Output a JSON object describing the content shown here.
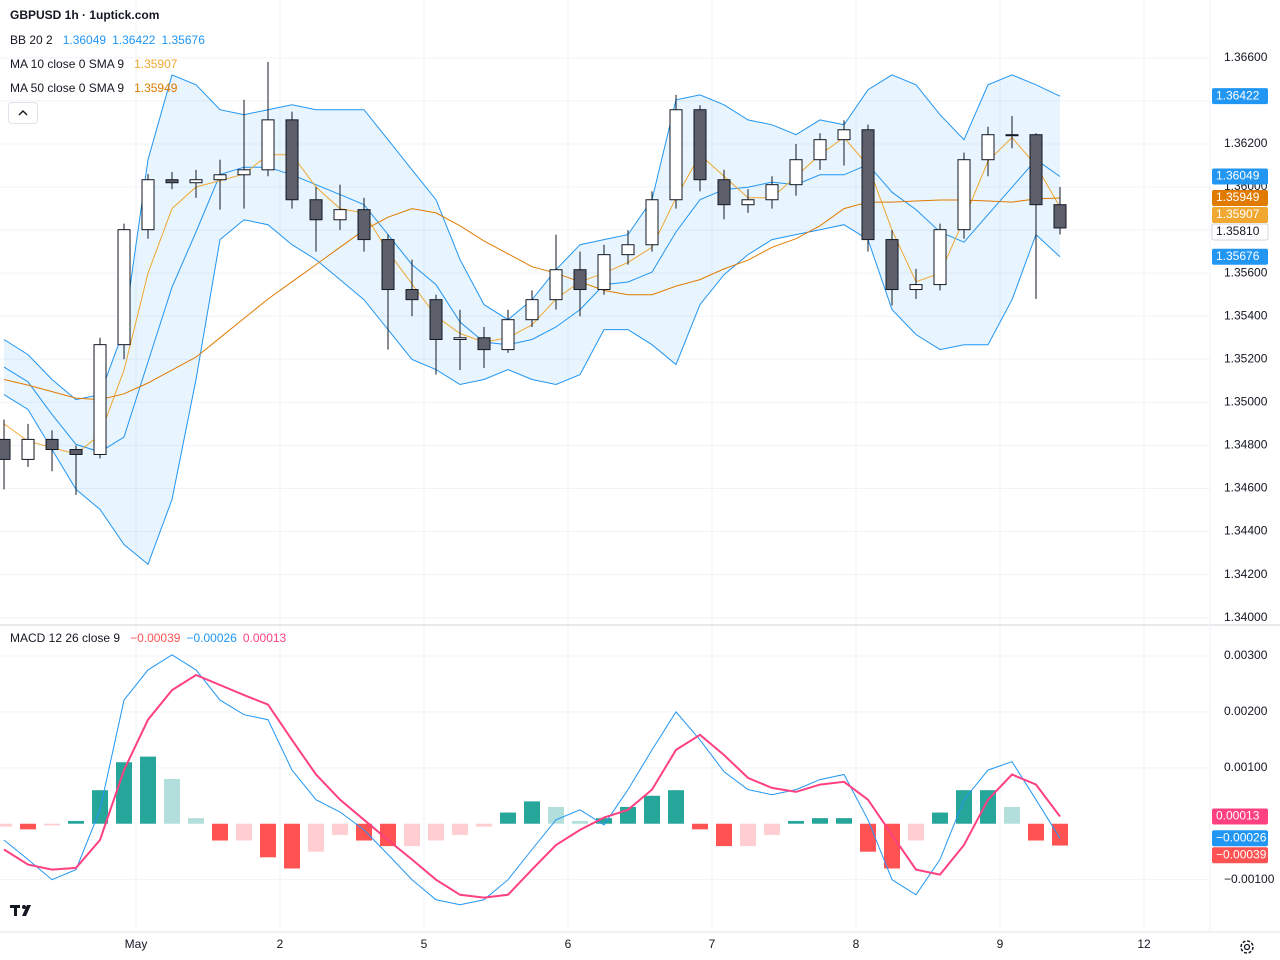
{
  "header": {
    "title": "GBPUSD 1h · 1uptick.com"
  },
  "chart_data": [
    {
      "type": "candlestick",
      "x": [
        -22,
        -18,
        -14,
        -10,
        -6,
        -2,
        2,
        6,
        10,
        14,
        18,
        22,
        26,
        30,
        34,
        38,
        42,
        46,
        50,
        54,
        58,
        62,
        66,
        70,
        74,
        78,
        82,
        86,
        90,
        94,
        98,
        102,
        106,
        110,
        114,
        118,
        122,
        126,
        130,
        134,
        138,
        142,
        146,
        150,
        154
      ],
      "xlim": [
        -22.67,
        179
      ],
      "xticks": [
        {
          "value": 0,
          "label": "May"
        },
        {
          "value": 24,
          "label": "2"
        },
        {
          "value": 48,
          "label": "5"
        },
        {
          "value": 72,
          "label": "6"
        },
        {
          "value": 96,
          "label": "7"
        },
        {
          "value": 120,
          "label": "8"
        },
        {
          "value": 144,
          "label": "9"
        },
        {
          "value": 168,
          "label": "12"
        }
      ],
      "open": [
        1.34828,
        1.34735,
        1.34828,
        1.34781,
        1.34758,
        1.35268,
        1.35802,
        1.36034,
        1.3602,
        1.36034,
        1.36057,
        1.3608,
        1.36312,
        1.35941,
        1.35848,
        1.35895,
        1.35756,
        1.35524,
        1.35477,
        1.35292,
        1.353,
        1.35245,
        1.35384,
        1.35477,
        1.35616,
        1.35524,
        1.35686,
        1.35732,
        1.35941,
        1.36359,
        1.36034,
        1.35918,
        1.35941,
        1.36011,
        1.36127,
        1.3622,
        1.36266,
        1.35756,
        1.35524,
        1.35547,
        1.35802,
        1.36127,
        1.36243,
        1.36243,
        1.35918
      ],
      "high": [
        1.3492,
        1.349,
        1.3487,
        1.348,
        1.353,
        1.3583,
        1.3606,
        1.3607,
        1.3608,
        1.36127,
        1.36405,
        1.36581,
        1.3635,
        1.36,
        1.36011,
        1.3595,
        1.3578,
        1.35663,
        1.355,
        1.3543,
        1.3535,
        1.3543,
        1.3552,
        1.35779,
        1.357,
        1.35732,
        1.358,
        1.3598,
        1.36428,
        1.3638,
        1.3608,
        1.3599,
        1.3605,
        1.362,
        1.3625,
        1.3631,
        1.3629,
        1.358,
        1.3562,
        1.3583,
        1.3616,
        1.3628,
        1.3633,
        1.3625,
        1.36
      ],
      "low": [
        1.34596,
        1.347,
        1.3468,
        1.3457,
        1.3474,
        1.352,
        1.3576,
        1.3599,
        1.3595,
        1.35895,
        1.359,
        1.3605,
        1.359,
        1.357,
        1.358,
        1.357,
        1.35245,
        1.354,
        1.35129,
        1.3515,
        1.3516,
        1.3523,
        1.3535,
        1.35431,
        1.354,
        1.355,
        1.3564,
        1.357,
        1.359,
        1.3598,
        1.3585,
        1.3588,
        1.359,
        1.3596,
        1.3608,
        1.361,
        1.357,
        1.3545,
        1.3548,
        1.3552,
        1.3576,
        1.3605,
        1.3618,
        1.3548,
        1.3578
      ],
      "close": [
        1.34735,
        1.34828,
        1.34781,
        1.34758,
        1.35268,
        1.35802,
        1.36034,
        1.3602,
        1.36034,
        1.36057,
        1.3608,
        1.36312,
        1.35941,
        1.35848,
        1.35895,
        1.35756,
        1.35524,
        1.35477,
        1.35292,
        1.353,
        1.35245,
        1.35384,
        1.35477,
        1.35616,
        1.35524,
        1.35686,
        1.35732,
        1.35941,
        1.36359,
        1.36034,
        1.35918,
        1.35941,
        1.36011,
        1.36127,
        1.3622,
        1.36266,
        1.35756,
        1.35524,
        1.35547,
        1.35802,
        1.36127,
        1.36243,
        1.36243,
        1.35918,
        1.3581
      ],
      "candle_colors": {
        "up": "#ffffff",
        "down": "#5d606b",
        "border": "#131722"
      },
      "last_price": {
        "value": 1.3581,
        "label": "1.35810"
      },
      "ylim": [
        1.3398,
        1.3672
      ],
      "yticks": [
        {
          "value": 1.34,
          "label": "1.34000"
        },
        {
          "value": 1.342,
          "label": "1.34200"
        },
        {
          "value": 1.344,
          "label": "1.34400"
        },
        {
          "value": 1.346,
          "label": "1.34600"
        },
        {
          "value": 1.348,
          "label": "1.34800"
        },
        {
          "value": 1.35,
          "label": "1.35000"
        },
        {
          "value": 1.352,
          "label": "1.35200"
        },
        {
          "value": 1.354,
          "label": "1.35400"
        },
        {
          "value": 1.356,
          "label": "1.35600"
        },
        {
          "value": 1.358,
          "label": "1.35800"
        },
        {
          "value": 1.36,
          "label": "1.36000"
        },
        {
          "value": 1.362,
          "label": "1.36200"
        },
        {
          "value": 1.364,
          "label": "1.36400"
        },
        {
          "value": 1.366,
          "label": "1.36600"
        }
      ],
      "grid": true,
      "indicators": [
        {
          "name": "BB 20 2",
          "color": "#2196f3",
          "fill": "rgba(33,150,243,0.10)",
          "series": [
            {
              "values": [
                1.35164,
                1.35095,
                1.34944,
                1.34805,
                1.3477,
                1.34839,
                1.35188,
                1.35535,
                1.35791,
                1.36058,
                1.36092,
                1.36092,
                1.36057,
                1.36011,
                1.35965,
                1.35918,
                1.35779,
                1.3564,
                1.35547,
                1.35373,
                1.3528,
                1.35268,
                1.35292,
                1.3535,
                1.35431,
                1.35547,
                1.35559,
                1.35605,
                1.35791,
                1.35941,
                1.35988,
                1.35999,
                1.36023,
                1.36011,
                1.36057,
                1.36057,
                1.36104,
                1.35976,
                1.35895,
                1.35791,
                1.35744,
                1.35872,
                1.35999,
                1.36127,
                1.36049
              ],
              "last": 1.36049
            },
            {
              "values": [
                1.35292,
                1.35222,
                1.35106,
                1.35013,
                1.35036,
                1.35338,
                1.36127,
                1.36521,
                1.36475,
                1.36359,
                1.36336,
                1.36359,
                1.36382,
                1.36359,
                1.36359,
                1.36359,
                1.3622,
                1.3608,
                1.35941,
                1.35663,
                1.35454,
                1.35384,
                1.35477,
                1.35616,
                1.35732,
                1.35756,
                1.35779,
                1.35941,
                1.36405,
                1.36428,
                1.36382,
                1.36312,
                1.36289,
                1.36243,
                1.36312,
                1.36289,
                1.36452,
                1.36521,
                1.36475,
                1.36336,
                1.3622,
                1.36475,
                1.36521,
                1.36475,
                1.36422
              ],
              "last": 1.36422
            },
            {
              "values": [
                1.35036,
                1.34967,
                1.34781,
                1.34596,
                1.34503,
                1.3434,
                1.34248,
                1.34549,
                1.35106,
                1.35756,
                1.35848,
                1.35825,
                1.35732,
                1.35663,
                1.3557,
                1.35477,
                1.35338,
                1.35199,
                1.35152,
                1.35083,
                1.35106,
                1.35152,
                1.35106,
                1.35083,
                1.35129,
                1.35338,
                1.35338,
                1.35268,
                1.35176,
                1.35454,
                1.35593,
                1.35686,
                1.35756,
                1.35779,
                1.35802,
                1.35825,
                1.35756,
                1.35431,
                1.35315,
                1.35245,
                1.35268,
                1.35268,
                1.35477,
                1.35779,
                1.35676
              ],
              "last": 1.35676
            }
          ]
        },
        {
          "name": "MA 10 close 0 SMA 9",
          "color": "#f0a830",
          "series": [
            {
              "values": [
                1.349,
                1.3482,
                1.3479,
                1.3476,
                1.3485,
                1.3515,
                1.356,
                1.359,
                1.36,
                1.3603,
                1.3606,
                1.3615,
                1.3615,
                1.36,
                1.359,
                1.3588,
                1.357,
                1.3555,
                1.354,
                1.3532,
                1.3528,
                1.353,
                1.3536,
                1.3548,
                1.3556,
                1.356,
                1.3565,
                1.3572,
                1.3595,
                1.3615,
                1.3605,
                1.3595,
                1.3595,
                1.3605,
                1.3615,
                1.3623,
                1.361,
                1.358,
                1.3556,
                1.356,
                1.3585,
                1.3612,
                1.3623,
                1.361,
                1.35907
              ],
              "last": 1.35907
            }
          ]
        },
        {
          "name": "MA 50 close 0 SMA 9",
          "color": "#e07b00",
          "series": [
            {
              "values": [
                1.35106,
                1.3508,
                1.3505,
                1.3502,
                1.35013,
                1.3504,
                1.3509,
                1.3515,
                1.3521,
                1.353,
                1.3539,
                1.3548,
                1.3556,
                1.3564,
                1.3572,
                1.358,
                1.3586,
                1.359,
                1.3588,
                1.3582,
                1.3575,
                1.3569,
                1.3563,
                1.356,
                1.3556,
                1.3552,
                1.355,
                1.355,
                1.3554,
                1.3557,
                1.3562,
                1.3566,
                1.3572,
                1.3576,
                1.3582,
                1.359,
                1.3593,
                1.3593,
                1.35935,
                1.3594,
                1.3594,
                1.35935,
                1.3593,
                1.35945,
                1.35949
              ],
              "last": 1.35949
            }
          ]
        }
      ]
    },
    {
      "type": "macd",
      "name": "MACD 12 26 close 9",
      "ylim": [
        -0.0019,
        0.0035
      ],
      "yticks": [
        {
          "value": -0.001,
          "label": "−0.00100"
        },
        {
          "value": 0.001,
          "label": "0.00100"
        },
        {
          "value": 0.002,
          "label": "0.00200"
        },
        {
          "value": 0.003,
          "label": "0.00300"
        }
      ],
      "grid": true,
      "histogram": {
        "values": [
          -5e-05,
          -0.0001,
          -3e-05,
          5e-05,
          0.0006,
          0.0011,
          0.0012,
          0.0008,
          0.0001,
          -0.0003,
          -0.0003,
          -0.0006,
          -0.0008,
          -0.0005,
          -0.0002,
          -0.0003,
          -0.0004,
          -0.0004,
          -0.0003,
          -0.0002,
          -5e-05,
          0.0002,
          0.0004,
          0.0003,
          5e-05,
          0.0001,
          0.0003,
          0.0005,
          0.0006,
          -0.0001,
          -0.0004,
          -0.0004,
          -0.0002,
          5e-05,
          0.0001,
          0.0001,
          -0.0005,
          -0.0008,
          -0.0003,
          0.0002,
          0.0006,
          0.0006,
          0.0003,
          -0.0003,
          -0.00039
        ],
        "colors": {
          "pos_up": "#26a69a",
          "pos_down": "#b2dfdb",
          "neg_up": "#ffcdd2",
          "neg_down": "#ff5252"
        },
        "color": "#ff5252",
        "last": -0.00039,
        "last_label": "−0.00039"
      },
      "macd": {
        "values": [
          -0.00029,
          -0.00064,
          -0.001,
          -0.00082,
          0.00025,
          0.00221,
          0.00275,
          0.00302,
          0.00275,
          0.00221,
          0.00195,
          0.00186,
          0.00096,
          0.00043,
          0.00021,
          -0.00011,
          -0.00055,
          -0.001,
          -0.00136,
          -0.00145,
          -0.00136,
          -0.001,
          -0.00046,
          7e-05,
          0.00025,
          -2e-05,
          0.00061,
          0.00132,
          0.002,
          0.0015,
          0.00093,
          0.00061,
          0.00052,
          0.00061,
          0.00079,
          0.00088,
          7e-05,
          -0.001,
          -0.00127,
          -0.00064,
          0.00043,
          0.00096,
          0.00111,
          0.00043,
          -0.00026
        ],
        "color": "#2196f3",
        "last": -0.00026,
        "last_label": "−0.00026"
      },
      "signal": {
        "values": [
          -0.00046,
          -0.00073,
          -0.00082,
          -0.00079,
          -0.00029,
          0.00096,
          0.00186,
          0.00239,
          0.00266,
          0.00248,
          0.0023,
          0.00213,
          0.0015,
          0.00088,
          0.00043,
          7e-05,
          -0.00029,
          -0.00064,
          -0.001,
          -0.00127,
          -0.00132,
          -0.00127,
          -0.00082,
          -0.00038,
          -0.00011,
          0.00011,
          0.00025,
          0.00061,
          0.00132,
          0.00159,
          0.00123,
          0.00082,
          0.00064,
          0.00057,
          0.0007,
          0.00075,
          0.00043,
          -0.0002,
          -0.00082,
          -0.00091,
          -0.00038,
          0.00043,
          0.00088,
          0.0007,
          0.00013
        ],
        "color": "#ff4081",
        "last": 0.00013,
        "last_label": "0.00013"
      }
    }
  ]
}
